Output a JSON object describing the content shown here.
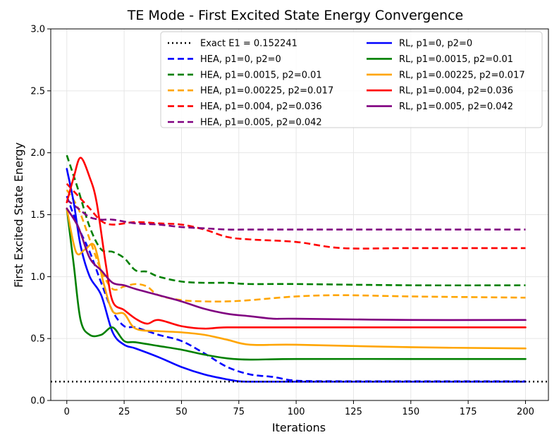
{
  "chart_data": {
    "type": "line",
    "title": "TE Mode - First Excited State Energy Convergence",
    "xlabel": "Iterations",
    "ylabel": "First Excited State Energy",
    "xlim": [
      -7,
      210
    ],
    "ylim": [
      0,
      3.0
    ],
    "xticks": [
      0,
      25,
      50,
      75,
      100,
      125,
      150,
      175,
      200
    ],
    "yticks": [
      0.0,
      0.5,
      1.0,
      1.5,
      2.0,
      2.5,
      3.0
    ],
    "xtick_labels": [
      "0",
      "25",
      "50",
      "75",
      "100",
      "125",
      "150",
      "175",
      "200"
    ],
    "ytick_labels": [
      "0.0",
      "0.5",
      "1.0",
      "1.5",
      "2.0",
      "2.5",
      "3.0"
    ],
    "grid": true,
    "legend_position": "top-right",
    "reference_line": {
      "name": "Exact E1 = 0.152241",
      "y": 0.152241,
      "color": "#000000",
      "style": "dotted"
    },
    "series": [
      {
        "name": "HEA, p1=0, p2=0",
        "color": "#0000ff",
        "style": "dashed",
        "x": [
          0,
          5,
          10,
          15,
          20,
          25,
          30,
          40,
          50,
          60,
          70,
          80,
          90,
          100,
          120,
          150,
          200
        ],
        "y": [
          1.65,
          1.4,
          1.2,
          0.95,
          0.72,
          0.6,
          0.59,
          0.53,
          0.48,
          0.38,
          0.27,
          0.21,
          0.19,
          0.16,
          0.155,
          0.155,
          0.155
        ]
      },
      {
        "name": "HEA, p1=0.0015, p2=0.01",
        "color": "#008000",
        "style": "dashed",
        "x": [
          0,
          5,
          10,
          15,
          20,
          25,
          30,
          35,
          40,
          50,
          60,
          70,
          80,
          100,
          150,
          200
        ],
        "y": [
          1.98,
          1.7,
          1.4,
          1.22,
          1.2,
          1.15,
          1.05,
          1.04,
          1.0,
          0.96,
          0.95,
          0.95,
          0.94,
          0.94,
          0.93,
          0.93
        ]
      },
      {
        "name": "HEA, p1=0.00225, p2=0.017",
        "color": "#ffa500",
        "style": "dashed",
        "x": [
          0,
          5,
          10,
          15,
          20,
          25,
          30,
          35,
          40,
          50,
          60,
          70,
          80,
          100,
          120,
          150,
          200
        ],
        "y": [
          1.7,
          1.55,
          1.3,
          1.05,
          0.9,
          0.92,
          0.94,
          0.92,
          0.85,
          0.81,
          0.8,
          0.8,
          0.81,
          0.84,
          0.85,
          0.84,
          0.83
        ]
      },
      {
        "name": "HEA, p1=0.004, p2=0.036",
        "color": "#ff0000",
        "style": "dashed",
        "x": [
          0,
          5,
          10,
          15,
          20,
          30,
          40,
          50,
          60,
          70,
          80,
          100,
          120,
          150,
          200
        ],
        "y": [
          1.75,
          1.65,
          1.55,
          1.45,
          1.42,
          1.44,
          1.43,
          1.42,
          1.38,
          1.32,
          1.3,
          1.28,
          1.23,
          1.23,
          1.23
        ]
      },
      {
        "name": "HEA, p1=0.005, p2=0.042",
        "color": "#800080",
        "style": "dashed",
        "x": [
          0,
          5,
          10,
          15,
          20,
          30,
          40,
          50,
          60,
          70,
          80,
          100,
          150,
          200
        ],
        "y": [
          1.62,
          1.55,
          1.48,
          1.46,
          1.46,
          1.43,
          1.42,
          1.4,
          1.39,
          1.38,
          1.38,
          1.38,
          1.38,
          1.38
        ]
      },
      {
        "name": "RL, p1=0, p2=0",
        "color": "#0000ff",
        "style": "solid",
        "x": [
          0,
          3,
          6,
          10,
          15,
          20,
          25,
          30,
          40,
          50,
          60,
          70,
          75,
          80,
          100,
          150,
          200
        ],
        "y": [
          1.87,
          1.6,
          1.25,
          1.0,
          0.85,
          0.55,
          0.45,
          0.42,
          0.35,
          0.27,
          0.21,
          0.17,
          0.155,
          0.152,
          0.152,
          0.152,
          0.152
        ]
      },
      {
        "name": "RL, p1=0.0015, p2=0.01",
        "color": "#008000",
        "style": "solid",
        "x": [
          0,
          3,
          6,
          10,
          15,
          20,
          25,
          30,
          40,
          50,
          60,
          70,
          80,
          100,
          150,
          200
        ],
        "y": [
          1.55,
          1.1,
          0.65,
          0.53,
          0.53,
          0.59,
          0.48,
          0.47,
          0.44,
          0.41,
          0.37,
          0.34,
          0.33,
          0.335,
          0.335,
          0.335
        ]
      },
      {
        "name": "RL, p1=0.00225, p2=0.017",
        "color": "#ffa500",
        "style": "solid",
        "x": [
          0,
          4,
          8,
          12,
          16,
          20,
          25,
          30,
          40,
          50,
          60,
          70,
          80,
          100,
          150,
          200
        ],
        "y": [
          1.55,
          1.2,
          1.22,
          1.25,
          0.95,
          0.72,
          0.7,
          0.58,
          0.56,
          0.55,
          0.53,
          0.49,
          0.45,
          0.45,
          0.43,
          0.42
        ]
      },
      {
        "name": "RL, p1=0.004, p2=0.036",
        "color": "#ff0000",
        "style": "solid",
        "x": [
          0,
          3,
          6,
          10,
          13,
          17,
          20,
          25,
          30,
          35,
          40,
          50,
          60,
          70,
          100,
          150,
          200
        ],
        "y": [
          1.6,
          1.8,
          1.96,
          1.8,
          1.6,
          1.1,
          0.8,
          0.73,
          0.66,
          0.62,
          0.65,
          0.6,
          0.58,
          0.59,
          0.59,
          0.59,
          0.59
        ]
      },
      {
        "name": "RL, p1=0.005, p2=0.042",
        "color": "#800080",
        "style": "solid",
        "x": [
          0,
          5,
          10,
          15,
          20,
          25,
          30,
          40,
          50,
          60,
          70,
          80,
          90,
          100,
          150,
          200
        ],
        "y": [
          1.55,
          1.4,
          1.15,
          1.05,
          0.95,
          0.93,
          0.9,
          0.85,
          0.8,
          0.74,
          0.7,
          0.68,
          0.66,
          0.66,
          0.65,
          0.65
        ]
      }
    ],
    "legend_columns": [
      [
        "Exact E1 = 0.152241",
        "HEA, p1=0, p2=0",
        "HEA, p1=0.0015, p2=0.01",
        "HEA, p1=0.00225, p2=0.017",
        "HEA, p1=0.004, p2=0.036",
        "HEA, p1=0.005, p2=0.042"
      ],
      [
        "RL, p1=0, p2=0",
        "RL, p1=0.0015, p2=0.01",
        "RL, p1=0.00225, p2=0.017",
        "RL, p1=0.004, p2=0.036",
        "RL, p1=0.005, p2=0.042"
      ]
    ]
  }
}
